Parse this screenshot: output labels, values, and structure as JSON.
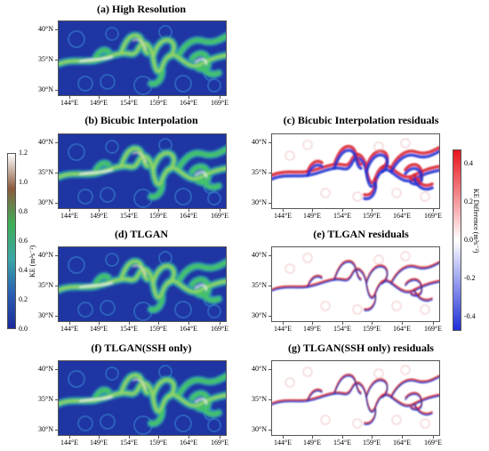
{
  "panels": {
    "a": {
      "title": "(a) High Resolution",
      "type": "ke"
    },
    "b": {
      "title": "(b) Bicubic Interpolation",
      "type": "ke"
    },
    "c": {
      "title": "(c) Bicubic Interpolation residuals",
      "type": "res"
    },
    "d": {
      "title": "(d) TLGAN",
      "type": "ke"
    },
    "e": {
      "title": "(e) TLGAN residuals",
      "type": "res"
    },
    "f": {
      "title": "(f) TLGAN(SSH only)",
      "type": "ke"
    },
    "g": {
      "title": "(g) TLGAN(SSH only) residuals",
      "type": "res"
    }
  },
  "axes": {
    "lat_labels": [
      "40°N",
      "35°N",
      "30°N"
    ],
    "lon_labels": [
      "144°E",
      "149°E",
      "154°E",
      "159°E",
      "164°E",
      "169°E"
    ]
  },
  "ke_colorbar": {
    "label": "KE (m²s⁻²)",
    "ticks": [
      "1.2",
      "1.0",
      "0.8",
      "0.6",
      "0.4",
      "0.2",
      "0.0"
    ],
    "colors": [
      "#ffffff",
      "#8b5a3c",
      "#3fae57",
      "#3aa6a5",
      "#2a5fb4",
      "#1b2a9a"
    ]
  },
  "res_colorbar": {
    "label": "KE Difference (m²s⁻²)",
    "ticks": [
      "0.4",
      "0.2",
      "0.0",
      "-0.2",
      "-0.4"
    ],
    "colors": [
      "#e8141c",
      "#ffffff",
      "#1f2fd8"
    ]
  }
}
